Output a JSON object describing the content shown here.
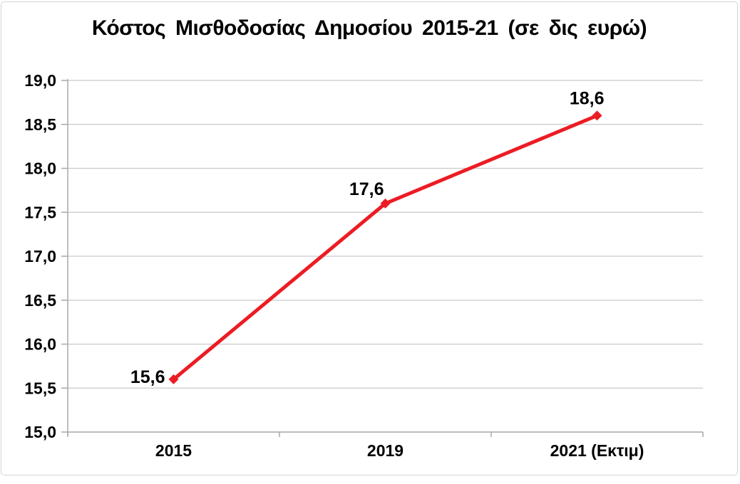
{
  "chart_data": {
    "type": "line",
    "title": "Κόστος Μισθοδοσίας Δημοσίου 2015-21 (σε δις ευρώ)",
    "categories": [
      "2015",
      "2019",
      "2021 (Εκτιμ)"
    ],
    "values": [
      15.6,
      17.6,
      18.6
    ],
    "point_labels": [
      "15,6",
      "17,6",
      "18,6"
    ],
    "ytick_values": [
      19,
      18.5,
      18,
      17.5,
      17,
      16.5,
      16,
      15.5,
      15
    ],
    "ytick_labels": [
      "19,0",
      "18,5",
      "18,0",
      "17,5",
      "17,0",
      "16,5",
      "16,0",
      "15,5",
      "15,0"
    ],
    "ylim": [
      15,
      19
    ],
    "xlabel": "",
    "ylabel": "",
    "grid": true,
    "legend_position": "none",
    "marker": "diamond",
    "line_color": "#ec1c24",
    "grid_color": "#c9c9c9",
    "axis_color": "#a9a9a9",
    "text_color": "#000000",
    "frame_border_color": "#d4d4d4"
  }
}
